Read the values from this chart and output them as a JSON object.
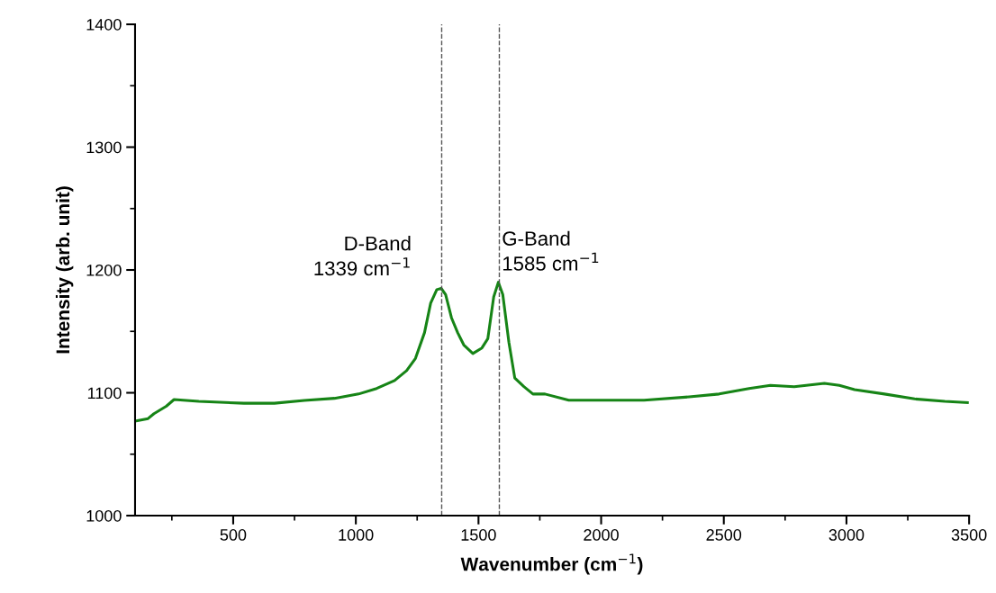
{
  "chart_data": {
    "type": "line",
    "xlabel": "Wavenumber (cm$^{−1}$)",
    "ylabel": "Intensity (arb. unit)",
    "xlim": [
      100,
      3500
    ],
    "xticks": [
      500,
      1000,
      1500,
      2000,
      2500,
      3000,
      3500
    ],
    "ylim": [
      1000,
      1400
    ],
    "yticks": [
      1000,
      1100,
      1200,
      1300,
      1400
    ],
    "grid": false,
    "legend": false,
    "marker": "none",
    "line_style": "solid",
    "series": [
      {
        "color": "#168416",
        "x": [
          100,
          153,
          177,
          227,
          259,
          360,
          544,
          668,
          790,
          913,
          1011,
          1085,
          1158,
          1207,
          1243,
          1280,
          1305,
          1330,
          1348,
          1366,
          1390,
          1415,
          1440,
          1477,
          1514,
          1538,
          1562,
          1581,
          1599,
          1624,
          1648,
          1685,
          1722,
          1771,
          1868,
          1991,
          2175,
          2359,
          2481,
          2603,
          2690,
          2787,
          2910,
          2971,
          3033,
          3155,
          3278,
          3401,
          3493
        ],
        "values": [
          1077,
          1079,
          1083,
          1089,
          1094.5,
          1093,
          1091.5,
          1091.5,
          1093.8,
          1095.5,
          1099,
          1103.5,
          1110,
          1118,
          1128,
          1149,
          1173,
          1184,
          1185,
          1180,
          1161,
          1149,
          1139,
          1132,
          1136.5,
          1144,
          1178,
          1190,
          1180,
          1141,
          1112,
          1105,
          1099,
          1099,
          1094,
          1094,
          1094,
          1096.7,
          1099,
          1103.5,
          1106,
          1105,
          1107.7,
          1106,
          1102.5,
          1099,
          1095,
          1093,
          1092
        ]
      }
    ],
    "ref_lines": [
      {
        "axis": "x",
        "value": 1350,
        "color": "#555555",
        "line_style": "dashed"
      },
      {
        "axis": "x",
        "value": 1585,
        "color": "#555555",
        "line_style": "dashed"
      }
    ],
    "annotations": [
      {
        "text": "D-Band\n1339 cm$^{−1}$",
        "x": 1339,
        "y": 1186
      },
      {
        "text": "G-Band\n1585 cm$^{−1}$",
        "x": 1585,
        "y": 1190
      }
    ]
  }
}
